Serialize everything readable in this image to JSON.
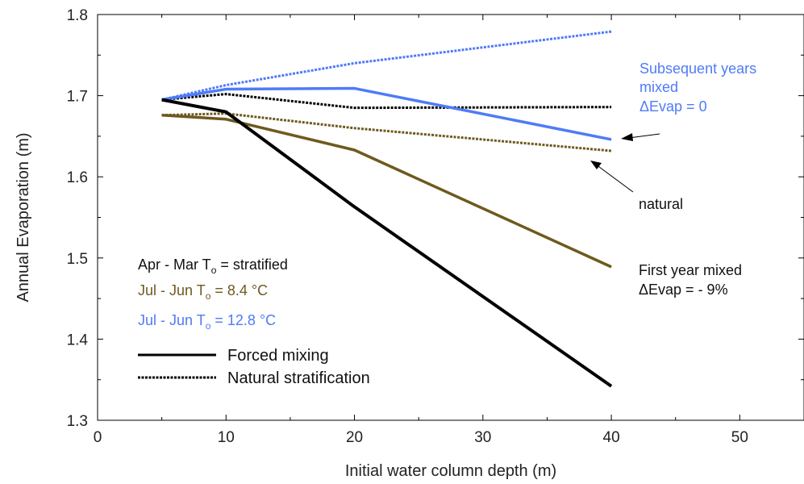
{
  "chart_data": {
    "type": "line",
    "xlabel": "Initial water column depth (m)",
    "ylabel": "Annual Evaporation (m)",
    "xlim": [
      0,
      55
    ],
    "ylim": [
      1.3,
      1.8
    ],
    "xticks": [
      0,
      10,
      20,
      30,
      40,
      50
    ],
    "yticks": [
      1.3,
      1.4,
      1.5,
      1.6,
      1.7,
      1.8
    ],
    "xtick_labels": [
      "0",
      "10",
      "20",
      "30",
      "40",
      "50"
    ],
    "ytick_labels": [
      "1.3",
      "1.4",
      "1.5",
      "1.6",
      "1.7",
      "1.8"
    ],
    "grid": false,
    "colors": {
      "black": "#000000",
      "olive": "#6e5a1e",
      "blue": "#4f7bf7"
    },
    "series": [
      {
        "color": "black",
        "style": "solid",
        "x": [
          5,
          10,
          20,
          40
        ],
        "y": [
          1.695,
          1.68,
          1.563,
          1.342
        ]
      },
      {
        "color": "black",
        "style": "dotted",
        "x": [
          5,
          10,
          20,
          40
        ],
        "y": [
          1.695,
          1.702,
          1.685,
          1.686
        ]
      },
      {
        "color": "olive",
        "style": "solid",
        "x": [
          5,
          10,
          20,
          40
        ],
        "y": [
          1.676,
          1.671,
          1.633,
          1.489
        ]
      },
      {
        "color": "olive",
        "style": "dotted",
        "x": [
          5,
          10,
          20,
          40
        ],
        "y": [
          1.676,
          1.678,
          1.66,
          1.632
        ]
      },
      {
        "color": "blue",
        "style": "solid",
        "x": [
          5,
          10,
          20,
          40
        ],
        "y": [
          1.695,
          1.708,
          1.709,
          1.646
        ]
      },
      {
        "color": "blue",
        "style": "dotted",
        "x": [
          5,
          10,
          20,
          40
        ],
        "y": [
          1.695,
          1.713,
          1.74,
          1.779
        ]
      }
    ],
    "annotations": {
      "subsequent_l1": "Subsequent years",
      "subsequent_l2": "mixed",
      "subsequent_l3": "ΔEvap = 0",
      "natural": "natural",
      "first_l1": "First year mixed",
      "first_l2": "ΔEvap = - 9%"
    },
    "condition_labels": {
      "black": {
        "pre": "Apr - Mar T",
        "sub": "o",
        "post": " = stratified"
      },
      "olive": {
        "pre": "Jul - Jun T",
        "sub": "o",
        "post": " = 8.4 °C"
      },
      "blue": {
        "pre": "Jul - Jun T",
        "sub": "o",
        "post": " = 12.8 °C"
      }
    },
    "legend": {
      "solid": "Forced mixing",
      "dotted": "Natural stratification"
    }
  }
}
